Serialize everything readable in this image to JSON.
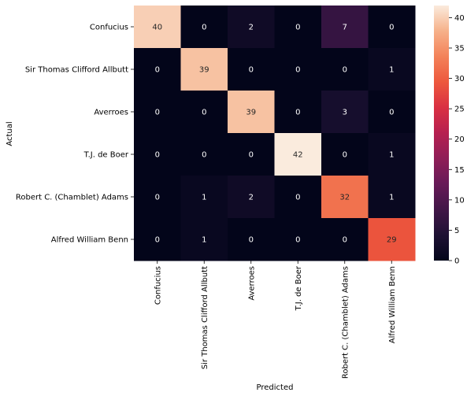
{
  "chart_data": {
    "type": "heatmap",
    "xlabel": "Predicted",
    "ylabel": "Actual",
    "x_categories": [
      "Confucius",
      "Sir Thomas Clifford Allbutt",
      "Averroes",
      "T.J. de Boer",
      "Robert C. (Chamblet) Adams",
      "Alfred William Benn"
    ],
    "y_categories": [
      "Confucius",
      "Sir Thomas Clifford Allbutt",
      "Averroes",
      "T.J. de Boer",
      "Robert C. (Chamblet) Adams",
      "Alfred William Benn"
    ],
    "values": [
      [
        40,
        0,
        2,
        0,
        7,
        0
      ],
      [
        0,
        39,
        0,
        0,
        0,
        1
      ],
      [
        0,
        0,
        39,
        0,
        3,
        0
      ],
      [
        0,
        0,
        0,
        42,
        0,
        1
      ],
      [
        0,
        1,
        2,
        0,
        32,
        1
      ],
      [
        0,
        1,
        0,
        0,
        0,
        29
      ]
    ],
    "colorbar": {
      "range": [
        0,
        42
      ],
      "ticks": [
        0,
        5,
        10,
        15,
        20,
        25,
        30,
        35,
        40
      ],
      "colormap": "rocket"
    },
    "annotations": true
  }
}
